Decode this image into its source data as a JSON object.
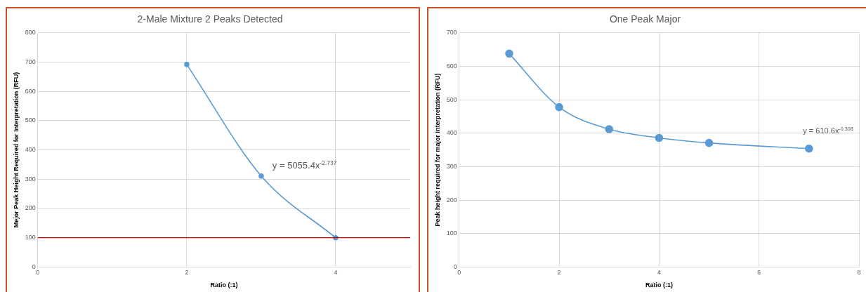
{
  "chart_data": [
    {
      "type": "line",
      "title": "2-Male Mixture 2 Peaks Detected",
      "xlabel": "Ratio (:1)",
      "ylabel": "Mejor Peak Height Required for Interpretation (RFU)",
      "x": [
        2,
        3,
        4
      ],
      "series": [
        {
          "color": "#5b9bd5",
          "values": [
            692,
            311,
            100
          ]
        }
      ],
      "xlim": [
        0,
        5
      ],
      "xticks": [
        0,
        2,
        4
      ],
      "ylim": [
        0,
        800
      ],
      "yticks": [
        0,
        100,
        200,
        300,
        400,
        500,
        600,
        700,
        800
      ],
      "ref_lines": [
        {
          "axis": "y",
          "value": 100,
          "color": "#c00000"
        }
      ],
      "annotations": [
        "y = 5055.4x$^{-2.737}$"
      ],
      "grid": true,
      "legend": false,
      "marker": "circle",
      "line_style": "solid"
    },
    {
      "type": "line",
      "title": "One Peak Major",
      "xlabel": "Ratio (:1)",
      "ylabel": "Peak height required for major interpretation (RFU)",
      "x": [
        1,
        2,
        3,
        4,
        5,
        7
      ],
      "series": [
        {
          "color": "#5b9bd5",
          "values": [
            638,
            478,
            412,
            386,
            371,
            354
          ]
        }
      ],
      "xlim": [
        0,
        8
      ],
      "xticks": [
        0,
        2,
        4,
        6,
        8
      ],
      "ylim": [
        0,
        700
      ],
      "yticks": [
        0,
        100,
        200,
        300,
        400,
        500,
        600,
        700
      ],
      "annotations": [
        "y = 610.6x$^{-0.308}$"
      ],
      "grid": true,
      "legend": false,
      "marker": "circle",
      "line_style": "solid"
    }
  ]
}
